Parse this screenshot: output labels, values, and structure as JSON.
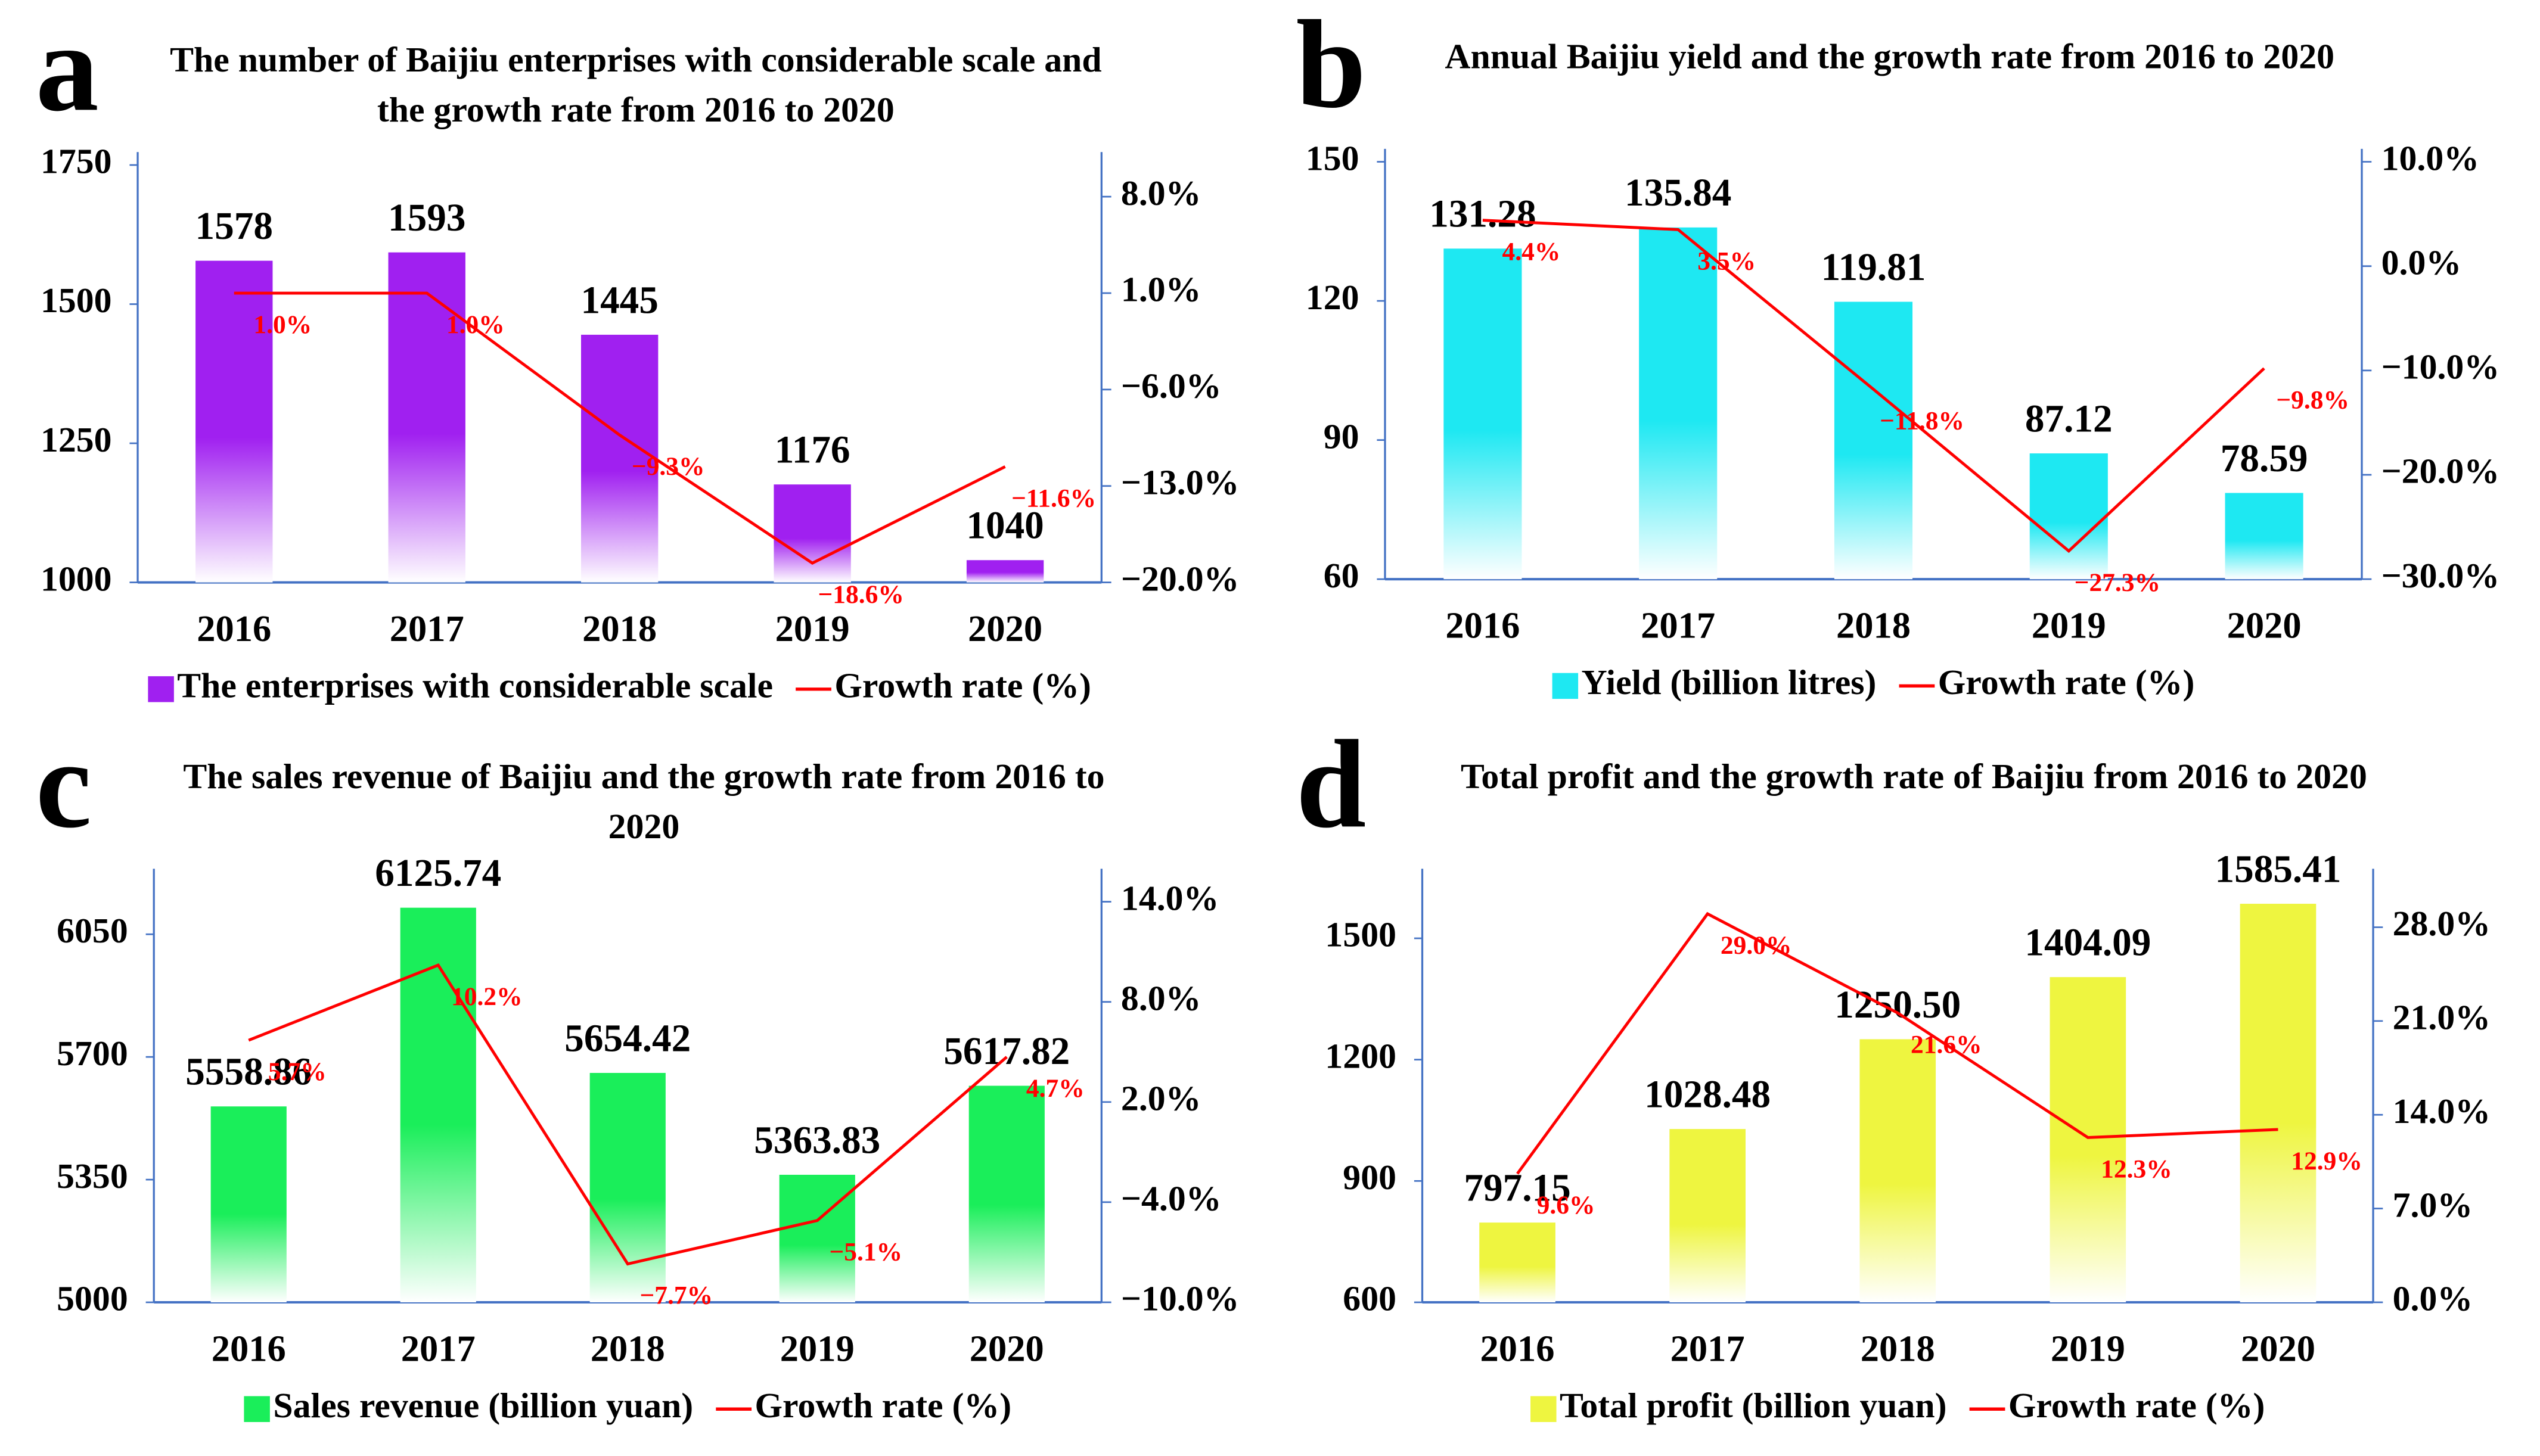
{
  "chart_data": [
    {
      "type": "bar-line",
      "panel": "a",
      "title": "The number of Baijiu enterprises with considerable scale and the growth rate from 2016 to 2020",
      "categories": [
        "2016",
        "2017",
        "2018",
        "2019",
        "2020"
      ],
      "series": [
        {
          "name": "The enterprises with considerable scale",
          "color": "#a020f0",
          "values": [
            1578,
            1593,
            1445,
            1176,
            1040
          ]
        },
        {
          "name": "Growth rate (%)",
          "color": "#ff0000",
          "axis": "y2",
          "values": [
            1.0,
            1.0,
            -9.3,
            -18.6,
            -11.6
          ],
          "value_labels": [
            "1.0%",
            "1.0%",
            "−9.3%",
            "−18.6%",
            "−11.6%"
          ]
        }
      ],
      "ylim": [
        1000,
        1750
      ],
      "yticks": [
        1000,
        1250,
        1500,
        1750
      ],
      "y2lim": [
        -20,
        10.3
      ],
      "y2ticks": [
        {
          "value": -20,
          "label": "−20.0%"
        },
        {
          "value": -13,
          "label": "−13.0%"
        },
        {
          "value": -6,
          "label": "−6.0%"
        },
        {
          "value": 1,
          "label": "1.0%"
        },
        {
          "value": 8,
          "label": "8.0%"
        }
      ]
    },
    {
      "type": "bar-line",
      "panel": "b",
      "title": "Annual Baijiu yield and the growth rate from 2016 to 2020",
      "categories": [
        "2016",
        "2017",
        "2018",
        "2019",
        "2020"
      ],
      "series": [
        {
          "name": "Yield (billion litres)",
          "color": "#1ee8f2",
          "values": [
            131.28,
            135.84,
            119.81,
            87.12,
            78.59
          ]
        },
        {
          "name": "Growth rate (%)",
          "color": "#ff0000",
          "axis": "y2",
          "values": [
            4.4,
            3.5,
            -11.8,
            -27.3,
            -9.8
          ],
          "value_labels": [
            "4.4%",
            "3.5%",
            "−11.8%",
            "−27.3%",
            "−9.8%"
          ]
        }
      ],
      "ylim": [
        60,
        150
      ],
      "yticks": [
        60,
        90,
        120,
        150
      ],
      "y2lim": [
        -30,
        10
      ],
      "y2ticks": [
        {
          "value": -30,
          "label": "−30.0%"
        },
        {
          "value": -20,
          "label": "−20.0%"
        },
        {
          "value": -10,
          "label": "−10.0%"
        },
        {
          "value": 0,
          "label": "0.0%"
        },
        {
          "value": 10,
          "label": "10.0%"
        }
      ]
    },
    {
      "type": "bar-line",
      "panel": "c",
      "title": "The sales revenue of Baijiu and the growth rate from 2016 to 2020",
      "categories": [
        "2016",
        "2017",
        "2018",
        "2019",
        "2020"
      ],
      "series": [
        {
          "name": "Sales revenue (billion yuan)",
          "color": "#1aee5a",
          "values": [
            5558.86,
            6125.74,
            5654.42,
            5363.83,
            5617.82
          ]
        },
        {
          "name": "Growth rate (%)",
          "color": "#ff0000",
          "axis": "y2",
          "values": [
            5.7,
            10.2,
            -7.7,
            -5.1,
            4.7
          ],
          "value_labels": [
            "5.7%",
            "10.2%",
            "−7.7%",
            "−5.1%",
            "4.7%"
          ]
        }
      ],
      "ylim": [
        5000,
        6200
      ],
      "yticks": [
        5000,
        5350,
        5700,
        6050
      ],
      "y2lim": [
        -10,
        15.2
      ],
      "y2ticks": [
        {
          "value": -10,
          "label": "−10.0%"
        },
        {
          "value": -4,
          "label": "−4.0%"
        },
        {
          "value": 2,
          "label": "2.0%"
        },
        {
          "value": 8,
          "label": "8.0%"
        },
        {
          "value": 14,
          "label": "14.0%"
        }
      ]
    },
    {
      "type": "bar-line",
      "panel": "d",
      "title": "Total profit and the growth rate of Baijiu from 2016 to 2020",
      "categories": [
        "2016",
        "2017",
        "2018",
        "2019",
        "2020"
      ],
      "series": [
        {
          "name": "Total profit (billion yuan)",
          "color": "#eef540",
          "values": [
            797.15,
            1028.48,
            1250.5,
            1404.09,
            1585.41
          ],
          "value_labels": [
            "797.15",
            "1028.48",
            "1250.50",
            "1404.09",
            "1585.41"
          ]
        },
        {
          "name": "Growth rate (%)",
          "color": "#ff0000",
          "axis": "y2",
          "values": [
            9.6,
            29.0,
            21.6,
            12.3,
            12.9
          ],
          "value_labels": [
            "9.6%",
            "29.0%",
            "21.6%",
            "12.3%",
            "12.9%"
          ]
        }
      ],
      "ylim": [
        600,
        1640
      ],
      "yticks": [
        600,
        900,
        1200,
        1500
      ],
      "y2lim": [
        0,
        31.4
      ],
      "y2ticks": [
        {
          "value": 0,
          "label": "0.0%"
        },
        {
          "value": 7,
          "label": "7.0%"
        },
        {
          "value": 14,
          "label": "14.0%"
        },
        {
          "value": 21,
          "label": "21.0%"
        },
        {
          "value": 28,
          "label": "28.0%"
        }
      ]
    }
  ]
}
